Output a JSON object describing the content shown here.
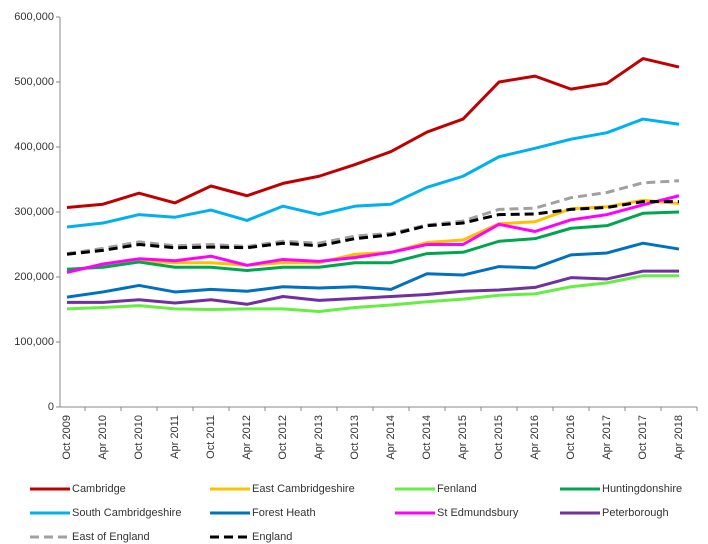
{
  "chart_data": {
    "type": "line",
    "categories": [
      "Oct 2009",
      "Apr 2010",
      "Oct 2010",
      "Apr 2011",
      "Oct 2011",
      "Apr 2012",
      "Oct 2012",
      "Apr 2013",
      "Oct 2013",
      "Apr 2014",
      "Oct 2014",
      "Apr 2015",
      "Oct 2015",
      "Apr 2016",
      "Oct 2016",
      "Apr 2017",
      "Oct 2017",
      "Apr 2018"
    ],
    "ylim": [
      0,
      600000
    ],
    "yticks": [
      0,
      {
        "value": 100000,
        "label": "100,000"
      },
      {
        "value": 200000,
        "label": "200,000"
      },
      {
        "value": 300000,
        "label": "300,000"
      },
      {
        "value": 400000,
        "label": "400,000"
      },
      {
        "value": 500000,
        "label": "500,000"
      },
      {
        "value": 600000,
        "label": "600,000"
      }
    ],
    "grid": false,
    "series": [
      {
        "name": "Cambridge",
        "color": "#c00000",
        "dashed": false,
        "values": [
          307000,
          312000,
          329000,
          314000,
          340000,
          325000,
          344000,
          355000,
          373000,
          393000,
          423000,
          443000,
          500000,
          509000,
          489000,
          498000,
          536000,
          523000
        ]
      },
      {
        "name": "East Cambridgeshire",
        "color": "#ffc000",
        "dashed": false,
        "values": [
          210000,
          218000,
          225000,
          222000,
          222000,
          218000,
          222000,
          222000,
          235000,
          238000,
          253000,
          257000,
          282000,
          285000,
          305000,
          308000,
          318000,
          313000
        ]
      },
      {
        "name": "Fenland",
        "color": "#66ee44",
        "dashed": false,
        "values": [
          151000,
          153000,
          156000,
          151000,
          150000,
          151000,
          151000,
          147000,
          153000,
          157000,
          162000,
          166000,
          172000,
          174000,
          185000,
          191000,
          202000,
          202000
        ]
      },
      {
        "name": "Huntingdonshire",
        "color": "#00a550",
        "dashed": false,
        "values": [
          212000,
          215000,
          223000,
          215000,
          215000,
          210000,
          215000,
          215000,
          222000,
          222000,
          236000,
          238000,
          255000,
          259000,
          275000,
          279000,
          298000,
          300000
        ]
      },
      {
        "name": "South Cambridgeshire",
        "color": "#00b0f0",
        "dashed": false,
        "values": [
          277000,
          283000,
          296000,
          292000,
          303000,
          287000,
          309000,
          296000,
          309000,
          312000,
          338000,
          355000,
          385000,
          398000,
          412000,
          422000,
          443000,
          435000
        ]
      },
      {
        "name": "Forest Heath",
        "color": "#0070c0",
        "dashed": false,
        "values": [
          169000,
          177000,
          187000,
          177000,
          181000,
          178000,
          185000,
          183000,
          185000,
          181000,
          205000,
          203000,
          216000,
          214000,
          234000,
          237000,
          252000,
          243000
        ]
      },
      {
        "name": "St Edmundsbury",
        "color": "#ff00ff",
        "dashed": false,
        "values": [
          207000,
          220000,
          228000,
          225000,
          232000,
          218000,
          227000,
          224000,
          230000,
          238000,
          250000,
          250000,
          281000,
          270000,
          288000,
          296000,
          311000,
          325000
        ]
      },
      {
        "name": "Peterborough",
        "color": "#7030a0",
        "dashed": false,
        "values": [
          161000,
          161000,
          165000,
          160000,
          165000,
          158000,
          170000,
          164000,
          167000,
          170000,
          173000,
          178000,
          180000,
          184000,
          199000,
          197000,
          209000,
          209000
        ]
      },
      {
        "name": "East of England",
        "color": "#a0a0a0",
        "dashed": true,
        "values": [
          236000,
          244000,
          254000,
          248000,
          250000,
          247000,
          255000,
          252000,
          263000,
          267000,
          280000,
          286000,
          304000,
          306000,
          322000,
          330000,
          345000,
          348000
        ]
      },
      {
        "name": "England",
        "color": "#000000",
        "dashed": true,
        "values": [
          235000,
          241000,
          250000,
          245000,
          246000,
          245000,
          252000,
          248000,
          259000,
          265000,
          279000,
          283000,
          296000,
          297000,
          304000,
          307000,
          316000,
          316000
        ]
      }
    ]
  }
}
